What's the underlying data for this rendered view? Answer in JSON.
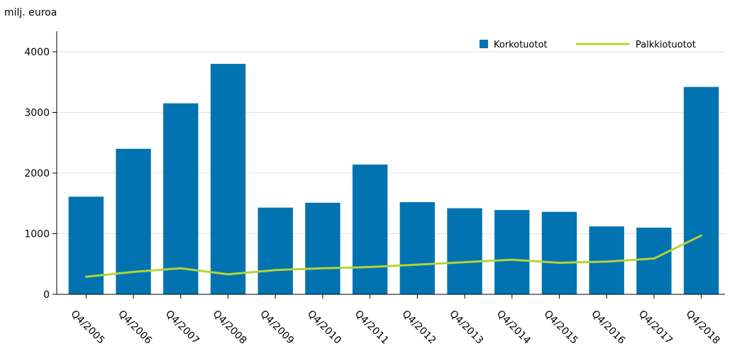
{
  "chart_data": {
    "type": "bar",
    "title": "",
    "ylabel": "milj. euroa",
    "xlabel": "",
    "ylim": [
      0,
      4000
    ],
    "yticks": [
      0,
      1000,
      2000,
      3000,
      4000
    ],
    "grid": true,
    "legend_position": "top-right",
    "categories": [
      "Q4/2005",
      "Q4/2006",
      "Q4/2007",
      "Q4/2008",
      "Q4/2009",
      "Q4/2010",
      "Q4/2011",
      "Q4/2012",
      "Q4/2013",
      "Q4/2014",
      "Q4/2015",
      "Q4/2016",
      "Q4/2017",
      "Q4/2018"
    ],
    "series": [
      {
        "name": "Korkotuotot",
        "kind": "bar",
        "color": "#0073b0",
        "values": [
          1610,
          2400,
          3150,
          3800,
          1430,
          1510,
          2140,
          1520,
          1420,
          1390,
          1360,
          1120,
          1100,
          3420
        ]
      },
      {
        "name": "Palkkiotuotot",
        "kind": "line",
        "color": "#b5d335",
        "values": [
          290,
          370,
          430,
          330,
          400,
          430,
          450,
          490,
          530,
          570,
          520,
          540,
          590,
          970
        ]
      }
    ]
  }
}
